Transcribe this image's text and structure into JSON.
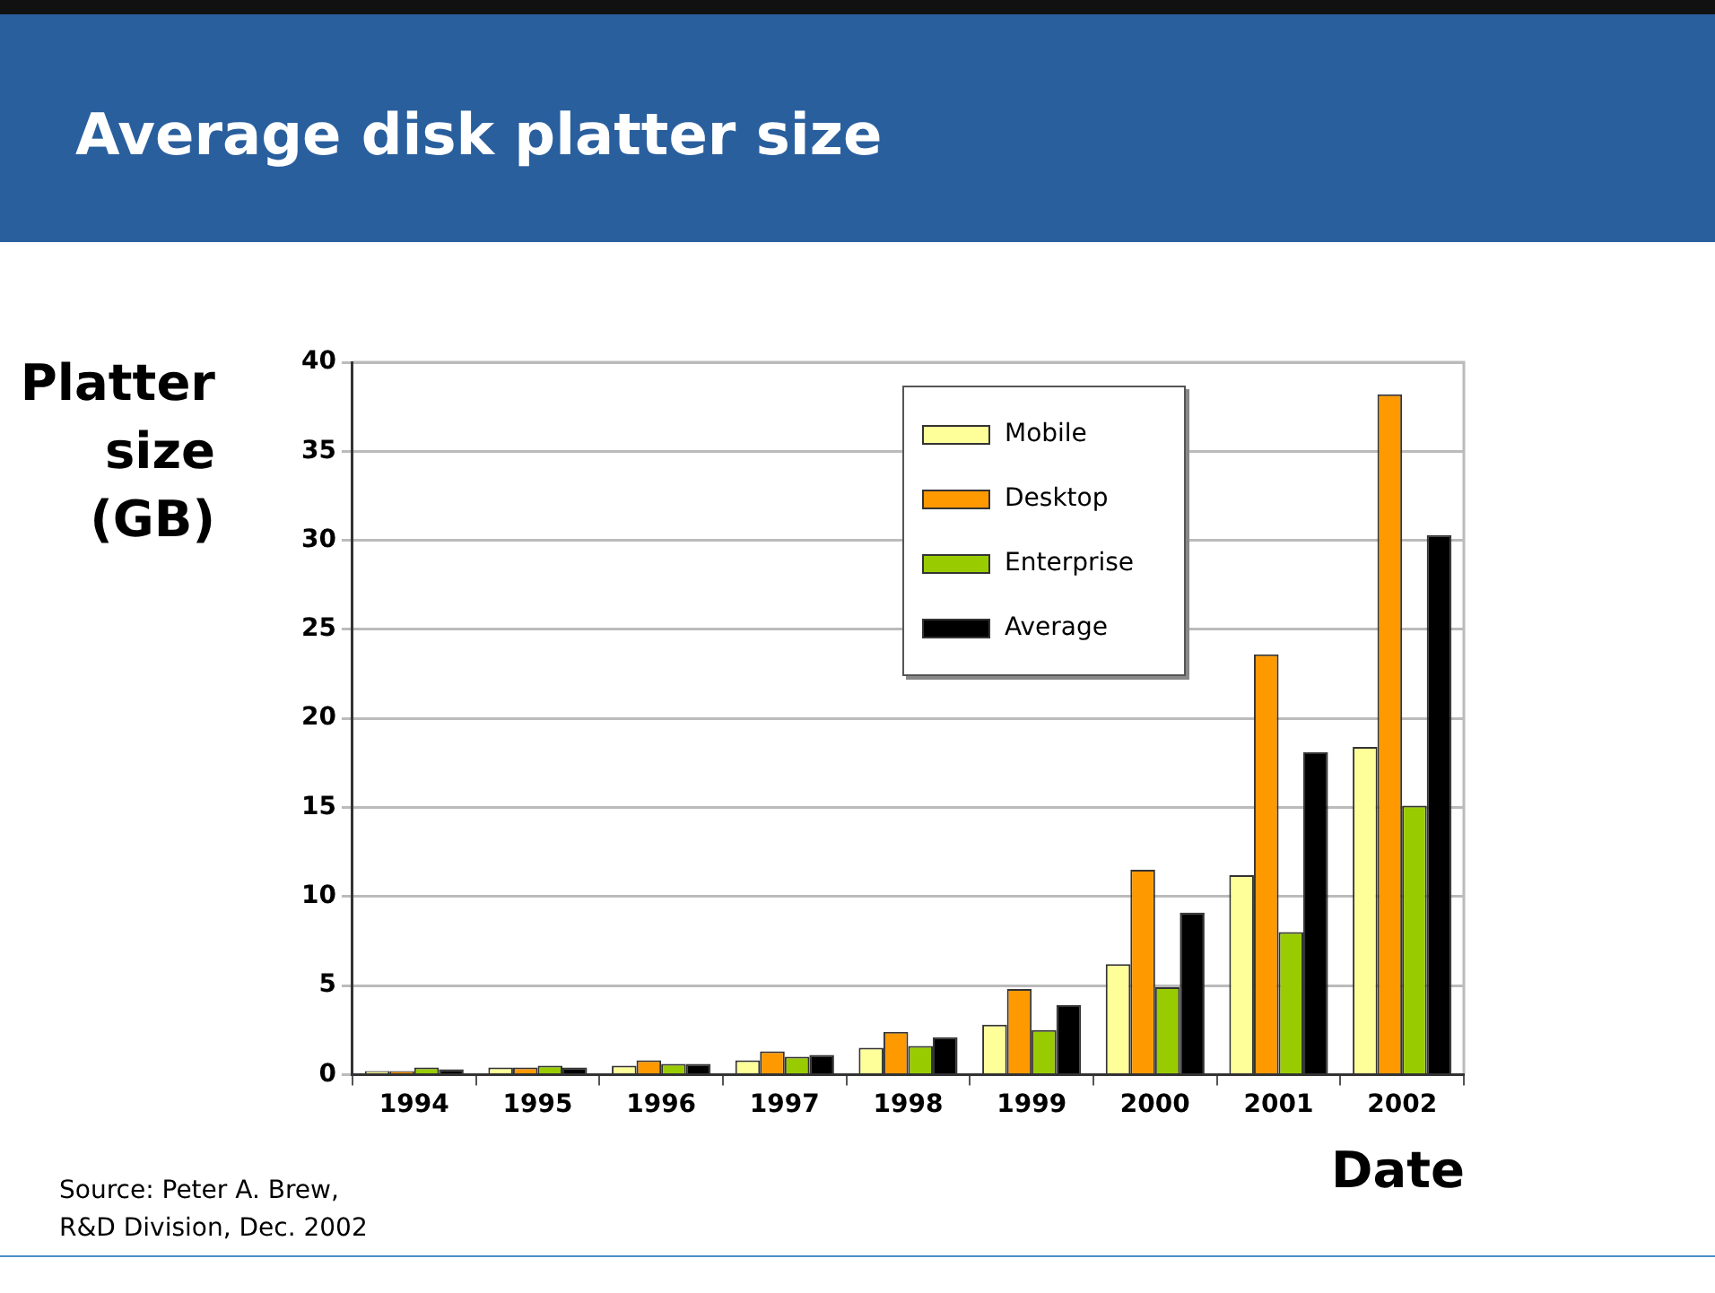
{
  "chart_data": {
    "type": "bar",
    "title": "Average disk platter size",
    "ylabel": "Platter size (GB)",
    "xlabel": "Date",
    "categories": [
      "1994",
      "1995",
      "1996",
      "1997",
      "1998",
      "1999",
      "2000",
      "2001",
      "2002"
    ],
    "series": [
      {
        "name": "Mobile",
        "color": "#ffff99",
        "values": [
          0.2,
          0.4,
          0.5,
          0.8,
          1.5,
          2.8,
          6.2,
          11.2,
          18.4
        ]
      },
      {
        "name": "Desktop",
        "color": "#ff9900",
        "values": [
          0.2,
          0.4,
          0.8,
          1.3,
          2.4,
          4.8,
          11.5,
          23.6,
          38.2
        ]
      },
      {
        "name": "Enterprise",
        "color": "#99cc00",
        "values": [
          0.4,
          0.5,
          0.6,
          1.0,
          1.6,
          2.5,
          4.9,
          8.0,
          15.1
        ]
      },
      {
        "name": "Average",
        "color": "#000000",
        "values": [
          0.3,
          0.4,
          0.6,
          1.1,
          2.1,
          3.9,
          9.1,
          18.1,
          30.3
        ]
      }
    ],
    "ylim": [
      0,
      40
    ],
    "yticks": [
      0,
      5,
      10,
      15,
      20,
      25,
      30,
      35,
      40
    ],
    "grid": "y",
    "legend": "top right",
    "annotations": [
      "Source: Peter A. Brew,\nR&D Division, Dec. 2002"
    ]
  }
}
